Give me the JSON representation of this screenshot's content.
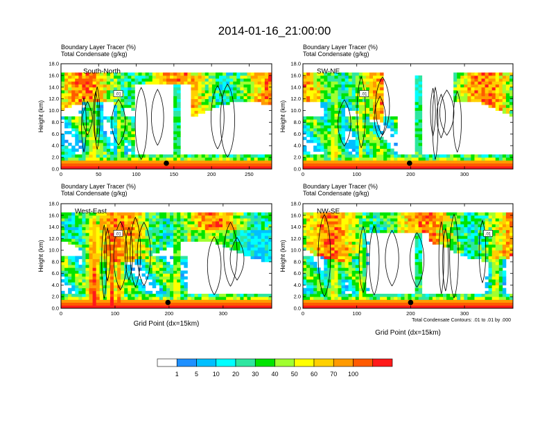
{
  "figure": {
    "title": "2014-01-16_21:00:00",
    "note": "Total Condensate Contours: .01 to .01 by .000"
  },
  "chart_data": [
    {
      "type": "heatmap",
      "label": "South-North",
      "left_title": "Boundary Layer Tracer   (%)",
      "left_subtitle": "Total Condensate   (g/kg)",
      "xlabel": "",
      "ylabel": "Height (km)",
      "xlim": [
        0,
        280
      ],
      "ylim": [
        0,
        18
      ],
      "xticks": [
        0,
        50,
        100,
        150,
        200,
        250
      ],
      "yticks": [
        0.0,
        2.0,
        4.0,
        6.0,
        8.0,
        10.0,
        12.0,
        14.0,
        16.0,
        18.0
      ],
      "contour_label": ".01",
      "marker": {
        "x": 140,
        "y": 1.0
      }
    },
    {
      "type": "heatmap",
      "label": "SW-NE",
      "left_title": "Boundary Layer Tracer   (%)",
      "left_subtitle": "Total Condensate   (g/kg)",
      "xlabel": "",
      "ylabel": "Height (km)",
      "xlim": [
        0,
        390
      ],
      "ylim": [
        0,
        18
      ],
      "xticks": [
        0,
        100,
        200,
        300
      ],
      "yticks": [
        0.0,
        2.0,
        4.0,
        6.0,
        8.0,
        10.0,
        12.0,
        14.0,
        16.0,
        18.0
      ],
      "contour_label": ".01",
      "marker": {
        "x": 198,
        "y": 1.0
      }
    },
    {
      "type": "heatmap",
      "label": "West-East",
      "left_title": "Boundary Layer Tracer   (%)",
      "left_subtitle": "Total Condensate   (g/kg)",
      "xlabel": "Grid Point (dx=15km)",
      "ylabel": "Height (km)",
      "xlim": [
        0,
        390
      ],
      "ylim": [
        0,
        18
      ],
      "xticks": [
        0,
        100,
        200,
        300
      ],
      "yticks": [
        0.0,
        2.0,
        4.0,
        6.0,
        8.0,
        10.0,
        12.0,
        14.0,
        16.0,
        18.0
      ],
      "contour_label": ".01",
      "marker": {
        "x": 198,
        "y": 1.0
      }
    },
    {
      "type": "heatmap",
      "label": "NW-SE",
      "left_title": "Boundary Layer Tracer   (%)",
      "left_subtitle": "Total Condensate   (g/kg)",
      "xlabel": "Grid Point (dx=15km)",
      "ylabel": "Height (km)",
      "xlim": [
        0,
        390
      ],
      "ylim": [
        0,
        18
      ],
      "xticks": [
        0,
        100,
        200,
        300
      ],
      "yticks": [
        0.0,
        2.0,
        4.0,
        6.0,
        8.0,
        10.0,
        12.0,
        14.0,
        16.0,
        18.0
      ],
      "contour_label": ".01",
      "marker": {
        "x": 200,
        "y": 1.0
      }
    }
  ],
  "colorbar": {
    "labels": [
      "1",
      "5",
      "10",
      "20",
      "30",
      "40",
      "50",
      "60",
      "70",
      "100"
    ],
    "colors": [
      "#ffffff",
      "#1e90ff",
      "#00bfff",
      "#00ffff",
      "#2ee6a0",
      "#00e400",
      "#a0ff30",
      "#ffff00",
      "#ffd000",
      "#ff9a00",
      "#ff5a00",
      "#ff1a1a"
    ]
  }
}
